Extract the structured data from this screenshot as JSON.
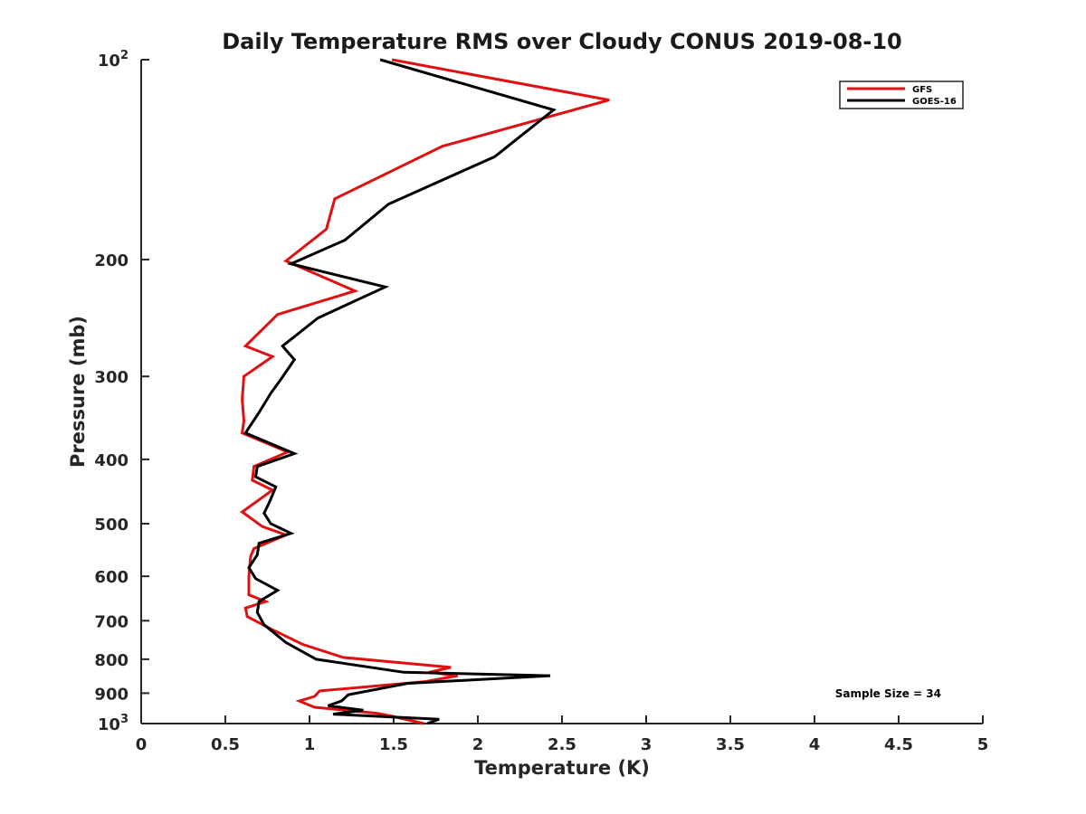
{
  "chart_data": {
    "type": "line",
    "title": "Daily Temperature RMS over Cloudy CONUS 2019-08-10",
    "xlabel": "Temperature (K)",
    "ylabel": "Pressure (mb)",
    "xlim": [
      0,
      5
    ],
    "ylim": [
      100,
      1000
    ],
    "y_scale": "log",
    "y_reversed": true,
    "grid": false,
    "legend_position": "top-right",
    "x_ticks": [
      "0",
      "0.5",
      "1",
      "1.5",
      "2",
      "2.5",
      "3",
      "3.5",
      "4",
      "4.5",
      "5"
    ],
    "y_ticks": [
      {
        "value": 100,
        "base": "10",
        "exp": "2"
      },
      {
        "value": 200,
        "label": "200"
      },
      {
        "value": 300,
        "label": "300"
      },
      {
        "value": 400,
        "label": "400"
      },
      {
        "value": 500,
        "label": "500"
      },
      {
        "value": 600,
        "label": "600"
      },
      {
        "value": 700,
        "label": "700"
      },
      {
        "value": 800,
        "label": "800"
      },
      {
        "value": 900,
        "label": "900"
      },
      {
        "value": 1000,
        "base": "10",
        "exp": "3"
      }
    ],
    "annotation": "Sample Size = 34",
    "series": [
      {
        "name": "GFS",
        "color": "#e01010",
        "points": [
          [
            1.49,
            100
          ],
          [
            2.78,
            115
          ],
          [
            1.79,
            135
          ],
          [
            1.15,
            162
          ],
          [
            1.1,
            180
          ],
          [
            0.86,
            201
          ],
          [
            1.27,
            223
          ],
          [
            0.81,
            242
          ],
          [
            0.62,
            270
          ],
          [
            0.78,
            280
          ],
          [
            0.61,
            300
          ],
          [
            0.6,
            325
          ],
          [
            0.61,
            350
          ],
          [
            0.6,
            365
          ],
          [
            0.87,
            390
          ],
          [
            0.67,
            410
          ],
          [
            0.66,
            430
          ],
          [
            0.78,
            445
          ],
          [
            0.6,
            480
          ],
          [
            0.72,
            505
          ],
          [
            0.86,
            520
          ],
          [
            0.67,
            545
          ],
          [
            0.65,
            560
          ],
          [
            0.64,
            600
          ],
          [
            0.64,
            640
          ],
          [
            0.74,
            655
          ],
          [
            0.62,
            670
          ],
          [
            0.63,
            690
          ],
          [
            0.77,
            720
          ],
          [
            0.96,
            760
          ],
          [
            1.2,
            795
          ],
          [
            1.84,
            823
          ],
          [
            1.71,
            837
          ],
          [
            1.88,
            847
          ],
          [
            1.68,
            865
          ],
          [
            1.06,
            893
          ],
          [
            1.03,
            910
          ],
          [
            0.94,
            925
          ],
          [
            1.03,
            945
          ],
          [
            1.4,
            965
          ],
          [
            1.49,
            975
          ],
          [
            1.68,
            1000
          ]
        ]
      },
      {
        "name": "GOES-16",
        "color": "#000000",
        "points": [
          [
            1.42,
            100
          ],
          [
            2.45,
            119
          ],
          [
            2.1,
            140
          ],
          [
            1.47,
            165
          ],
          [
            1.21,
            187
          ],
          [
            0.89,
            203
          ],
          [
            1.45,
            220
          ],
          [
            1.05,
            245
          ],
          [
            0.84,
            270
          ],
          [
            0.91,
            283
          ],
          [
            0.83,
            303
          ],
          [
            0.77,
            318
          ],
          [
            0.7,
            340
          ],
          [
            0.62,
            365
          ],
          [
            0.91,
            392
          ],
          [
            0.69,
            410
          ],
          [
            0.68,
            425
          ],
          [
            0.8,
            440
          ],
          [
            0.76,
            465
          ],
          [
            0.73,
            482
          ],
          [
            0.77,
            500
          ],
          [
            0.89,
            517
          ],
          [
            0.7,
            535
          ],
          [
            0.69,
            557
          ],
          [
            0.64,
            582
          ],
          [
            0.68,
            605
          ],
          [
            0.81,
            630
          ],
          [
            0.7,
            655
          ],
          [
            0.69,
            680
          ],
          [
            0.73,
            710
          ],
          [
            0.86,
            755
          ],
          [
            1.04,
            800
          ],
          [
            1.56,
            837
          ],
          [
            2.43,
            847
          ],
          [
            1.58,
            870
          ],
          [
            1.23,
            905
          ],
          [
            1.19,
            925
          ],
          [
            1.11,
            940
          ],
          [
            1.32,
            955
          ],
          [
            1.14,
            968
          ],
          [
            1.77,
            985
          ],
          [
            1.7,
            1000
          ]
        ]
      }
    ]
  }
}
